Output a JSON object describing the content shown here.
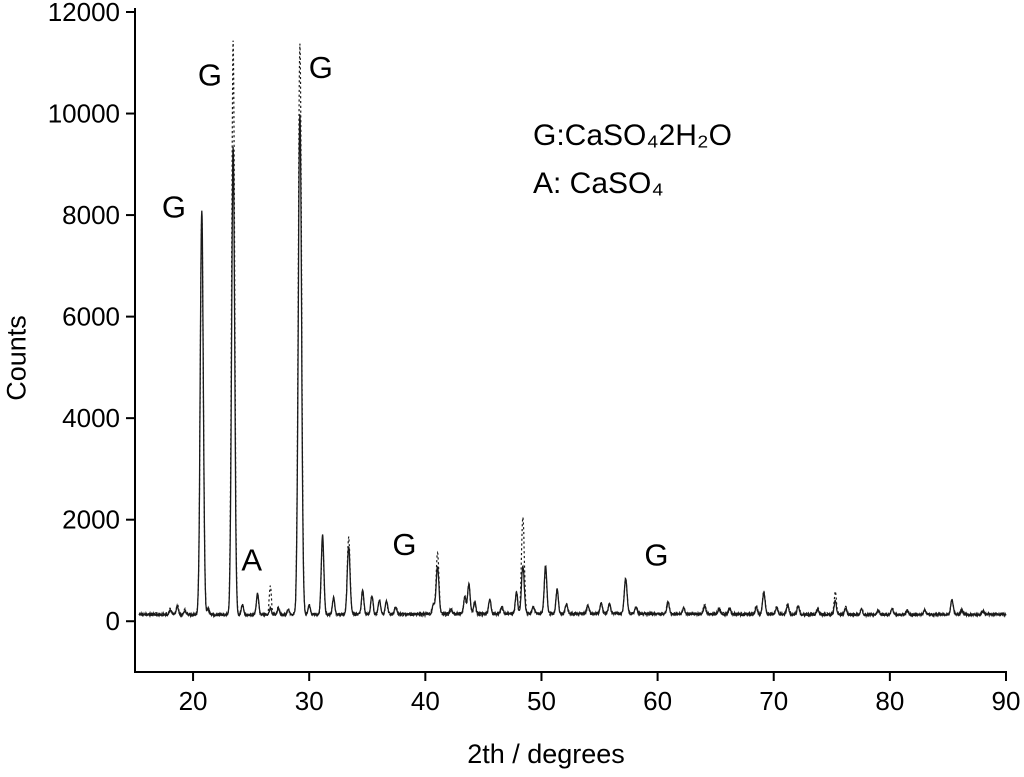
{
  "page": {
    "background": "#ffffff"
  },
  "chart_data": {
    "type": "line",
    "title": "",
    "xlabel": "2th / degrees",
    "ylabel": "Counts",
    "xlim": [
      15,
      90
    ],
    "ylim": [
      -1000,
      12000
    ],
    "x_ticks": [
      20,
      30,
      40,
      50,
      60,
      70,
      80,
      90
    ],
    "y_ticks": [
      0,
      2000,
      4000,
      6000,
      8000,
      10000,
      12000
    ],
    "grid": false,
    "axis_color": "#000000",
    "line_color": "#1a1a1a",
    "baseline": 140,
    "noise": 22,
    "legend": [
      "G:CaSO₄2H₂O",
      "A: CaSO₄"
    ],
    "series": [
      {
        "style": "dotted",
        "height_key": "d"
      },
      {
        "style": "solid",
        "height_key": "s"
      }
    ],
    "annotations": [
      {
        "label": "G",
        "x": 18.35,
        "y": 7950
      },
      {
        "label": "G",
        "x": 21.45,
        "y": 10550
      },
      {
        "label": "G",
        "x": 31.0,
        "y": 10700
      },
      {
        "label": "A",
        "x": 25.05,
        "y": 1000
      },
      {
        "label": "G",
        "x": 38.2,
        "y": 1300
      },
      {
        "label": "G",
        "x": 59.9,
        "y": 1100
      }
    ],
    "peaks": [
      {
        "x": 18.05,
        "s": 100,
        "d": 100,
        "w": 0.1
      },
      {
        "x": 18.65,
        "s": 170,
        "d": 170,
        "w": 0.1
      },
      {
        "x": 19.3,
        "s": 80,
        "d": 80,
        "w": 0.1
      },
      {
        "x": 20.75,
        "s": 7980,
        "d": 7850,
        "w": 0.13
      },
      {
        "x": 21.3,
        "s": 120,
        "d": 120,
        "w": 0.1
      },
      {
        "x": 23.45,
        "s": 9230,
        "d": 11280,
        "w": 0.13
      },
      {
        "x": 24.25,
        "s": 200,
        "d": 200,
        "w": 0.1
      },
      {
        "x": 25.55,
        "s": 420,
        "d": 380,
        "w": 0.1
      },
      {
        "x": 26.65,
        "s": 120,
        "d": 560,
        "w": 0.09
      },
      {
        "x": 27.35,
        "s": 130,
        "d": 130,
        "w": 0.1
      },
      {
        "x": 28.2,
        "s": 90,
        "d": 90,
        "w": 0.1
      },
      {
        "x": 29.2,
        "s": 9870,
        "d": 11230,
        "w": 0.14
      },
      {
        "x": 30.0,
        "s": 180,
        "d": 180,
        "w": 0.1
      },
      {
        "x": 31.15,
        "s": 1580,
        "d": 1520,
        "w": 0.11
      },
      {
        "x": 32.1,
        "s": 330,
        "d": 330,
        "w": 0.1
      },
      {
        "x": 33.4,
        "s": 1330,
        "d": 1520,
        "w": 0.12
      },
      {
        "x": 34.6,
        "s": 480,
        "d": 480,
        "w": 0.1
      },
      {
        "x": 35.4,
        "s": 360,
        "d": 360,
        "w": 0.1
      },
      {
        "x": 36.05,
        "s": 290,
        "d": 290,
        "w": 0.1
      },
      {
        "x": 36.65,
        "s": 260,
        "d": 260,
        "w": 0.1
      },
      {
        "x": 37.45,
        "s": 140,
        "d": 140,
        "w": 0.1
      },
      {
        "x": 40.7,
        "s": 180,
        "d": 180,
        "w": 0.1
      },
      {
        "x": 41.05,
        "s": 930,
        "d": 1230,
        "w": 0.12
      },
      {
        "x": 42.2,
        "s": 90,
        "d": 90,
        "w": 0.1
      },
      {
        "x": 43.4,
        "s": 330,
        "d": 330,
        "w": 0.1
      },
      {
        "x": 43.75,
        "s": 580,
        "d": 580,
        "w": 0.11
      },
      {
        "x": 44.25,
        "s": 230,
        "d": 230,
        "w": 0.1
      },
      {
        "x": 45.55,
        "s": 290,
        "d": 290,
        "w": 0.1
      },
      {
        "x": 46.6,
        "s": 130,
        "d": 130,
        "w": 0.1
      },
      {
        "x": 47.85,
        "s": 420,
        "d": 420,
        "w": 0.1
      },
      {
        "x": 48.4,
        "s": 930,
        "d": 1930,
        "w": 0.12
      },
      {
        "x": 49.3,
        "s": 130,
        "d": 130,
        "w": 0.1
      },
      {
        "x": 50.35,
        "s": 930,
        "d": 900,
        "w": 0.11
      },
      {
        "x": 51.35,
        "s": 480,
        "d": 480,
        "w": 0.1
      },
      {
        "x": 52.15,
        "s": 190,
        "d": 190,
        "w": 0.1
      },
      {
        "x": 54.0,
        "s": 160,
        "d": 160,
        "w": 0.1
      },
      {
        "x": 55.15,
        "s": 210,
        "d": 210,
        "w": 0.1
      },
      {
        "x": 55.85,
        "s": 190,
        "d": 190,
        "w": 0.1
      },
      {
        "x": 57.25,
        "s": 690,
        "d": 690,
        "w": 0.12
      },
      {
        "x": 58.15,
        "s": 140,
        "d": 140,
        "w": 0.1
      },
      {
        "x": 60.9,
        "s": 240,
        "d": 240,
        "w": 0.1
      },
      {
        "x": 62.25,
        "s": 110,
        "d": 110,
        "w": 0.1
      },
      {
        "x": 64.05,
        "s": 170,
        "d": 170,
        "w": 0.1
      },
      {
        "x": 65.3,
        "s": 110,
        "d": 110,
        "w": 0.1
      },
      {
        "x": 66.2,
        "s": 110,
        "d": 110,
        "w": 0.1
      },
      {
        "x": 68.5,
        "s": 140,
        "d": 140,
        "w": 0.1
      },
      {
        "x": 69.15,
        "s": 430,
        "d": 430,
        "w": 0.11
      },
      {
        "x": 70.25,
        "s": 140,
        "d": 140,
        "w": 0.1
      },
      {
        "x": 71.2,
        "s": 190,
        "d": 190,
        "w": 0.1
      },
      {
        "x": 72.1,
        "s": 170,
        "d": 170,
        "w": 0.1
      },
      {
        "x": 73.8,
        "s": 110,
        "d": 110,
        "w": 0.1
      },
      {
        "x": 75.3,
        "s": 270,
        "d": 420,
        "w": 0.1
      },
      {
        "x": 76.2,
        "s": 140,
        "d": 140,
        "w": 0.1
      },
      {
        "x": 77.55,
        "s": 110,
        "d": 110,
        "w": 0.1
      },
      {
        "x": 79.0,
        "s": 90,
        "d": 90,
        "w": 0.1
      },
      {
        "x": 80.2,
        "s": 120,
        "d": 120,
        "w": 0.1
      },
      {
        "x": 81.5,
        "s": 90,
        "d": 90,
        "w": 0.1
      },
      {
        "x": 83.0,
        "s": 90,
        "d": 90,
        "w": 0.1
      },
      {
        "x": 85.35,
        "s": 290,
        "d": 290,
        "w": 0.11
      },
      {
        "x": 86.2,
        "s": 90,
        "d": 90,
        "w": 0.1
      },
      {
        "x": 88.0,
        "s": 70,
        "d": 70,
        "w": 0.1
      }
    ]
  }
}
